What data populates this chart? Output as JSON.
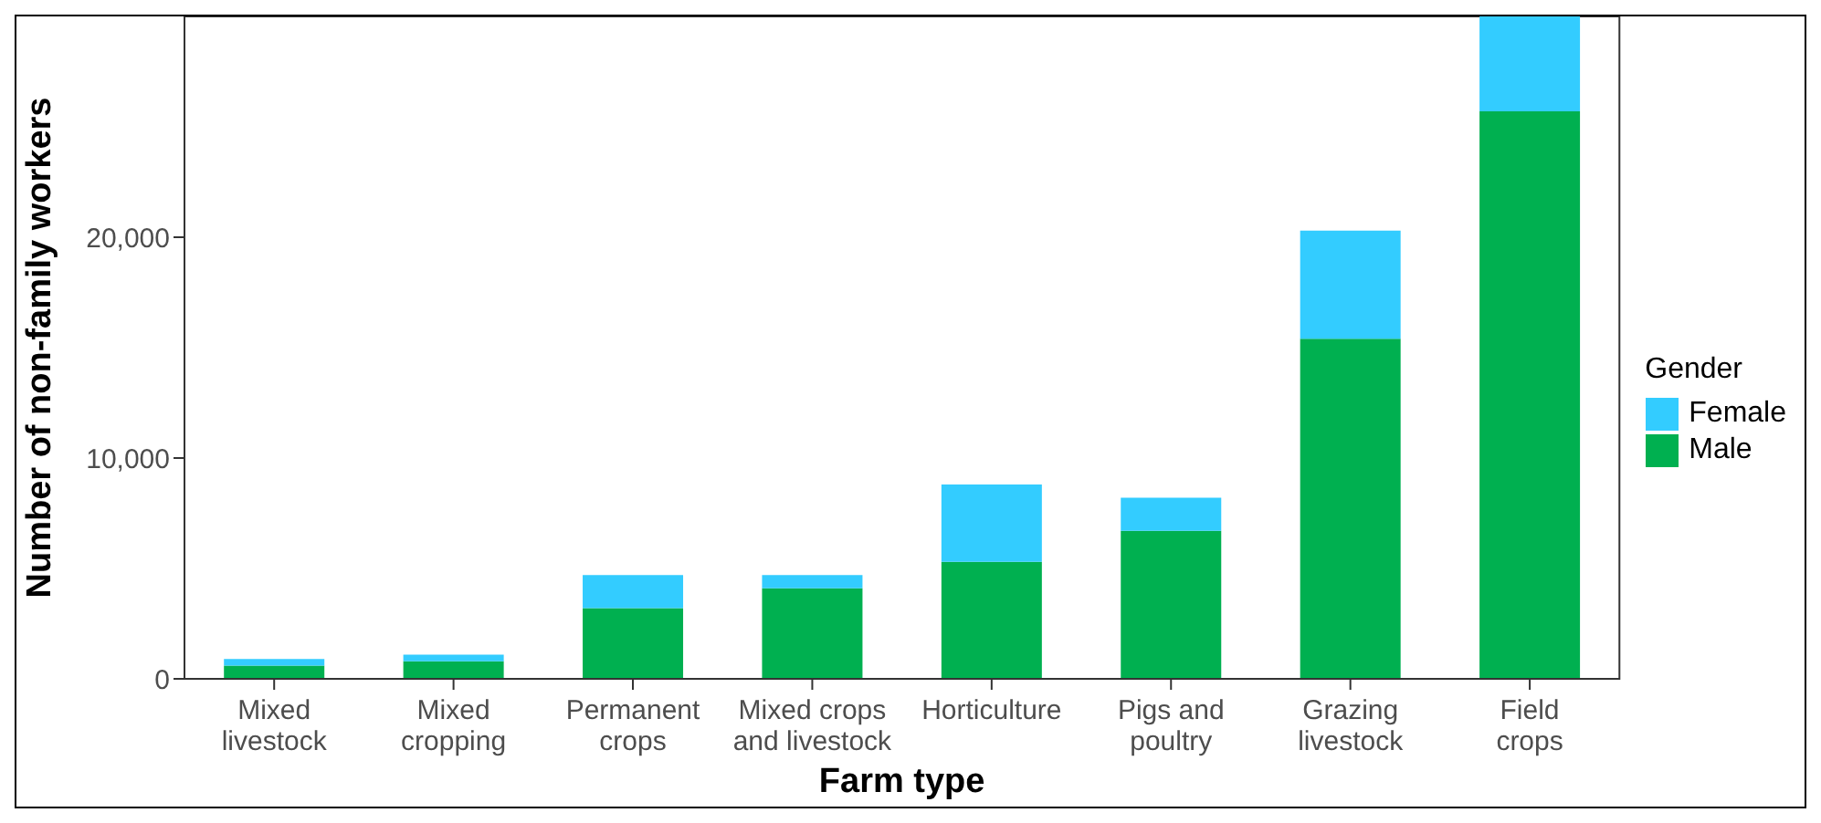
{
  "chart_data": {
    "type": "bar",
    "stacked": true,
    "xlabel": "Farm type",
    "ylabel": "Number of non-family workers",
    "legend_title": "Gender",
    "legend": "right",
    "grid": false,
    "categories": [
      "Mixed livestock",
      "Mixed cropping",
      "Permanent crops",
      "Mixed crops and livestock",
      "Horticulture",
      "Pigs and poultry",
      "Grazing livestock",
      "Field crops"
    ],
    "series": [
      {
        "name": "Male",
        "color": "#00b050",
        "values": [
          600,
          800,
          3200,
          4100,
          5300,
          6700,
          15400,
          25700
        ]
      },
      {
        "name": "Female",
        "color": "#33ccff",
        "values": [
          300,
          300,
          1500,
          600,
          3500,
          1500,
          4900,
          4300
        ]
      }
    ],
    "ylim": [
      0,
      30000
    ],
    "yticks": [
      {
        "value": 0,
        "label": "0"
      },
      {
        "value": 10000,
        "label": "10,000"
      },
      {
        "value": 20000,
        "label": "20,000"
      }
    ]
  }
}
